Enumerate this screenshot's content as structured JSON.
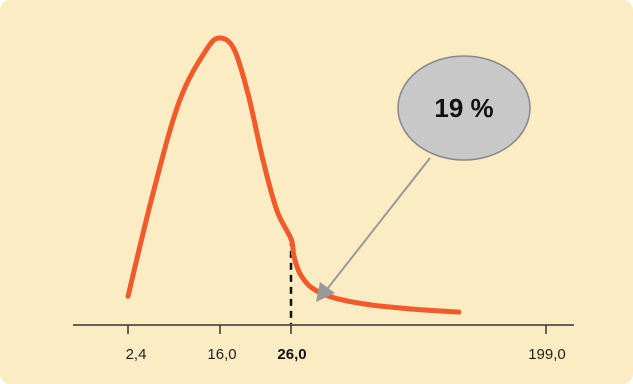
{
  "chart_data": {
    "type": "line",
    "series": [
      {
        "x": [
          2.4,
          6,
          10,
          14,
          16,
          18,
          20,
          22,
          24,
          26,
          28,
          32,
          40,
          55,
          80,
          110,
          140
        ],
        "y": [
          0.1,
          0.45,
          0.78,
          0.96,
          1.0,
          0.96,
          0.8,
          0.58,
          0.4,
          0.3,
          0.24,
          0.18,
          0.13,
          0.095,
          0.07,
          0.055,
          0.045
        ]
      }
    ],
    "x_ticks": [
      "2,4",
      "16,0",
      "26,0",
      "199,0"
    ],
    "highlight_tick": "26,0",
    "marker_x": 26.0,
    "annotation": "19 %",
    "colors": {
      "background": "#fcecc4",
      "curve": "#f15a2b",
      "callout_fill": "#c8c8c8",
      "callout_stroke": "#888888"
    }
  }
}
